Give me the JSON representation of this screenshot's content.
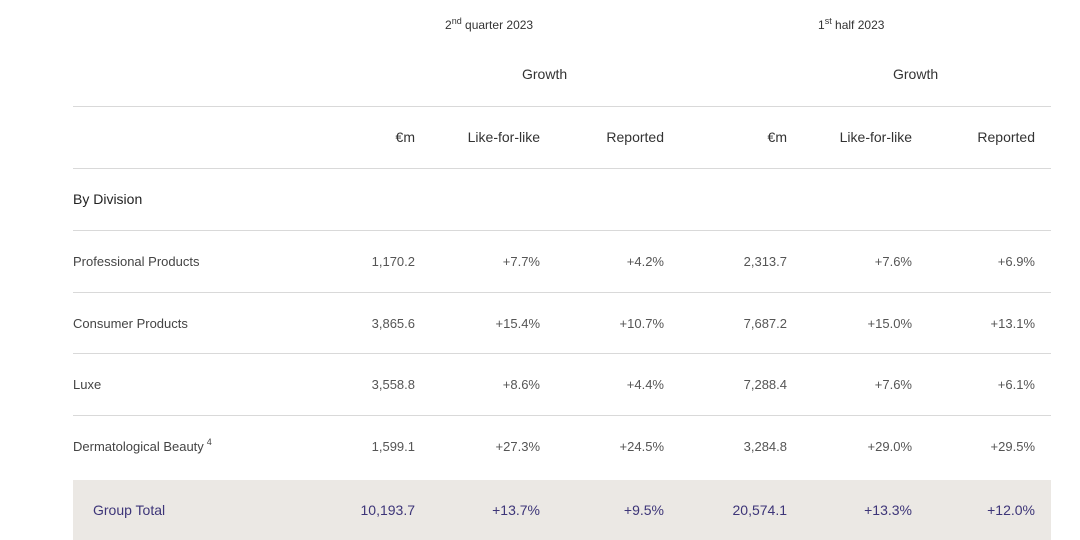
{
  "header": {
    "q2": {
      "num": "2",
      "sup": "nd",
      "text": " quarter 2023"
    },
    "h1": {
      "num": "1",
      "sup": "st",
      "text": " half 2023"
    },
    "growth_label": "Growth"
  },
  "columns": [
    "€m",
    "Like-for-like",
    "Reported",
    "€m",
    "Like-for-like",
    "Reported"
  ],
  "section_label": "By Division",
  "rows": [
    {
      "label": "Professional Products",
      "note": "",
      "values": [
        "1,170.2",
        "+7.7%",
        "+4.2%",
        "2,313.7",
        "+7.6%",
        "+6.9%"
      ]
    },
    {
      "label": "Consumer Products",
      "note": "",
      "values": [
        "3,865.6",
        "+15.4%",
        "+10.7%",
        "7,687.2",
        "+15.0%",
        "+13.1%"
      ]
    },
    {
      "label": "Luxe",
      "note": "",
      "values": [
        "3,558.8",
        "+8.6%",
        "+4.4%",
        "7,288.4",
        "+7.6%",
        "+6.1%"
      ]
    },
    {
      "label": "Dermatological Beauty",
      "note": "4",
      "values": [
        "1,599.1",
        "+27.3%",
        "+24.5%",
        "3,284.8",
        "+29.0%",
        "+29.5%"
      ]
    }
  ],
  "total": {
    "label": "Group Total",
    "values": [
      "10,193.7",
      "+13.7%",
      "+9.5%",
      "20,574.1",
      "+13.3%",
      "+12.0%"
    ]
  },
  "colors": {
    "total_bg": "#ebe8e4",
    "total_text": "#3d3578",
    "rule": "#d9d9d9"
  }
}
